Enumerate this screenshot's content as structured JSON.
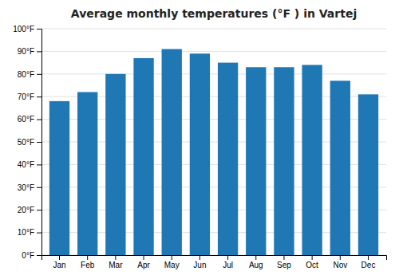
{
  "chart_data": {
    "type": "bar",
    "title": "Average monthly temperatures (°F ) in Vartej",
    "categories": [
      "Jan",
      "Feb",
      "Mar",
      "Apr",
      "May",
      "Jun",
      "Jul",
      "Aug",
      "Sep",
      "Oct",
      "Nov",
      "Dec"
    ],
    "values": [
      68,
      72,
      80,
      87,
      91,
      89,
      85,
      83,
      83,
      84,
      77,
      71
    ],
    "ylim": [
      0,
      100
    ],
    "yticks": [
      {
        "value": 0,
        "label": "0°F"
      },
      {
        "value": 10,
        "label": "10°F"
      },
      {
        "value": 20,
        "label": "20°F"
      },
      {
        "value": 30,
        "label": "30°F"
      },
      {
        "value": 40,
        "label": "40°F"
      },
      {
        "value": 50,
        "label": "50°F"
      },
      {
        "value": 60,
        "label": "60°F"
      },
      {
        "value": 70,
        "label": "70°F"
      },
      {
        "value": 80,
        "label": "80°F"
      },
      {
        "value": 90,
        "label": "90°F"
      },
      {
        "value": 100,
        "label": "100°F"
      }
    ],
    "grid": true
  }
}
